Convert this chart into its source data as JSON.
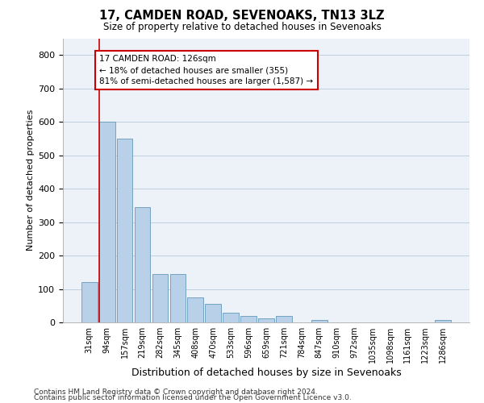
{
  "title1": "17, CAMDEN ROAD, SEVENOAKS, TN13 3LZ",
  "title2": "Size of property relative to detached houses in Sevenoaks",
  "xlabel": "Distribution of detached houses by size in Sevenoaks",
  "ylabel": "Number of detached properties",
  "categories": [
    "31sqm",
    "94sqm",
    "157sqm",
    "219sqm",
    "282sqm",
    "345sqm",
    "408sqm",
    "470sqm",
    "533sqm",
    "596sqm",
    "659sqm",
    "721sqm",
    "784sqm",
    "847sqm",
    "910sqm",
    "972sqm",
    "1035sqm",
    "1098sqm",
    "1161sqm",
    "1223sqm",
    "1286sqm"
  ],
  "values": [
    120,
    600,
    550,
    345,
    145,
    145,
    75,
    55,
    30,
    20,
    13,
    20,
    0,
    8,
    0,
    0,
    0,
    0,
    0,
    0,
    8
  ],
  "bar_color": "#b8d0e8",
  "bar_edge_color": "#6699bb",
  "grid_color": "#c0cfe0",
  "bg_color": "#edf2f8",
  "annotation_text": "17 CAMDEN ROAD: 126sqm\n← 18% of detached houses are smaller (355)\n81% of semi-detached houses are larger (1,587) →",
  "annotation_box_color": "#ffffff",
  "annotation_box_edge": "#cc0000",
  "property_line_color": "#cc0000",
  "ylim": [
    0,
    850
  ],
  "yticks": [
    0,
    100,
    200,
    300,
    400,
    500,
    600,
    700,
    800
  ],
  "footer1": "Contains HM Land Registry data © Crown copyright and database right 2024.",
  "footer2": "Contains public sector information licensed under the Open Government Licence v3.0."
}
